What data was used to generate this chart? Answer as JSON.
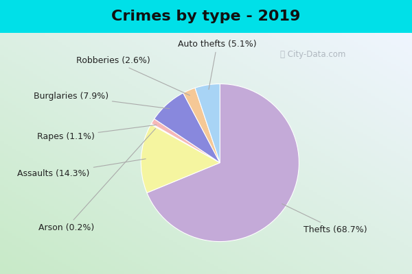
{
  "title": "Crimes by type - 2019",
  "labels": [
    "Thefts",
    "Assaults",
    "Arson",
    "Rapes",
    "Burglaries",
    "Robberies",
    "Auto thefts"
  ],
  "display_labels": [
    "Thefts (68.7%)",
    "Assaults (14.3%)",
    "Arson (0.2%)",
    "Rapes (1.1%)",
    "Burglaries (7.9%)",
    "Robberies (2.6%)",
    "Auto thefts (5.1%)"
  ],
  "values": [
    68.7,
    14.3,
    0.2,
    1.1,
    7.9,
    2.6,
    5.1
  ],
  "colors": [
    "#c4aad8",
    "#f5f5a0",
    "#cccccc",
    "#f5b8b8",
    "#8888dd",
    "#f5c896",
    "#a8d4f5"
  ],
  "background_cyan": "#00e0e8",
  "background_body": "#d0edd0",
  "title_fontsize": 16,
  "label_fontsize": 9
}
